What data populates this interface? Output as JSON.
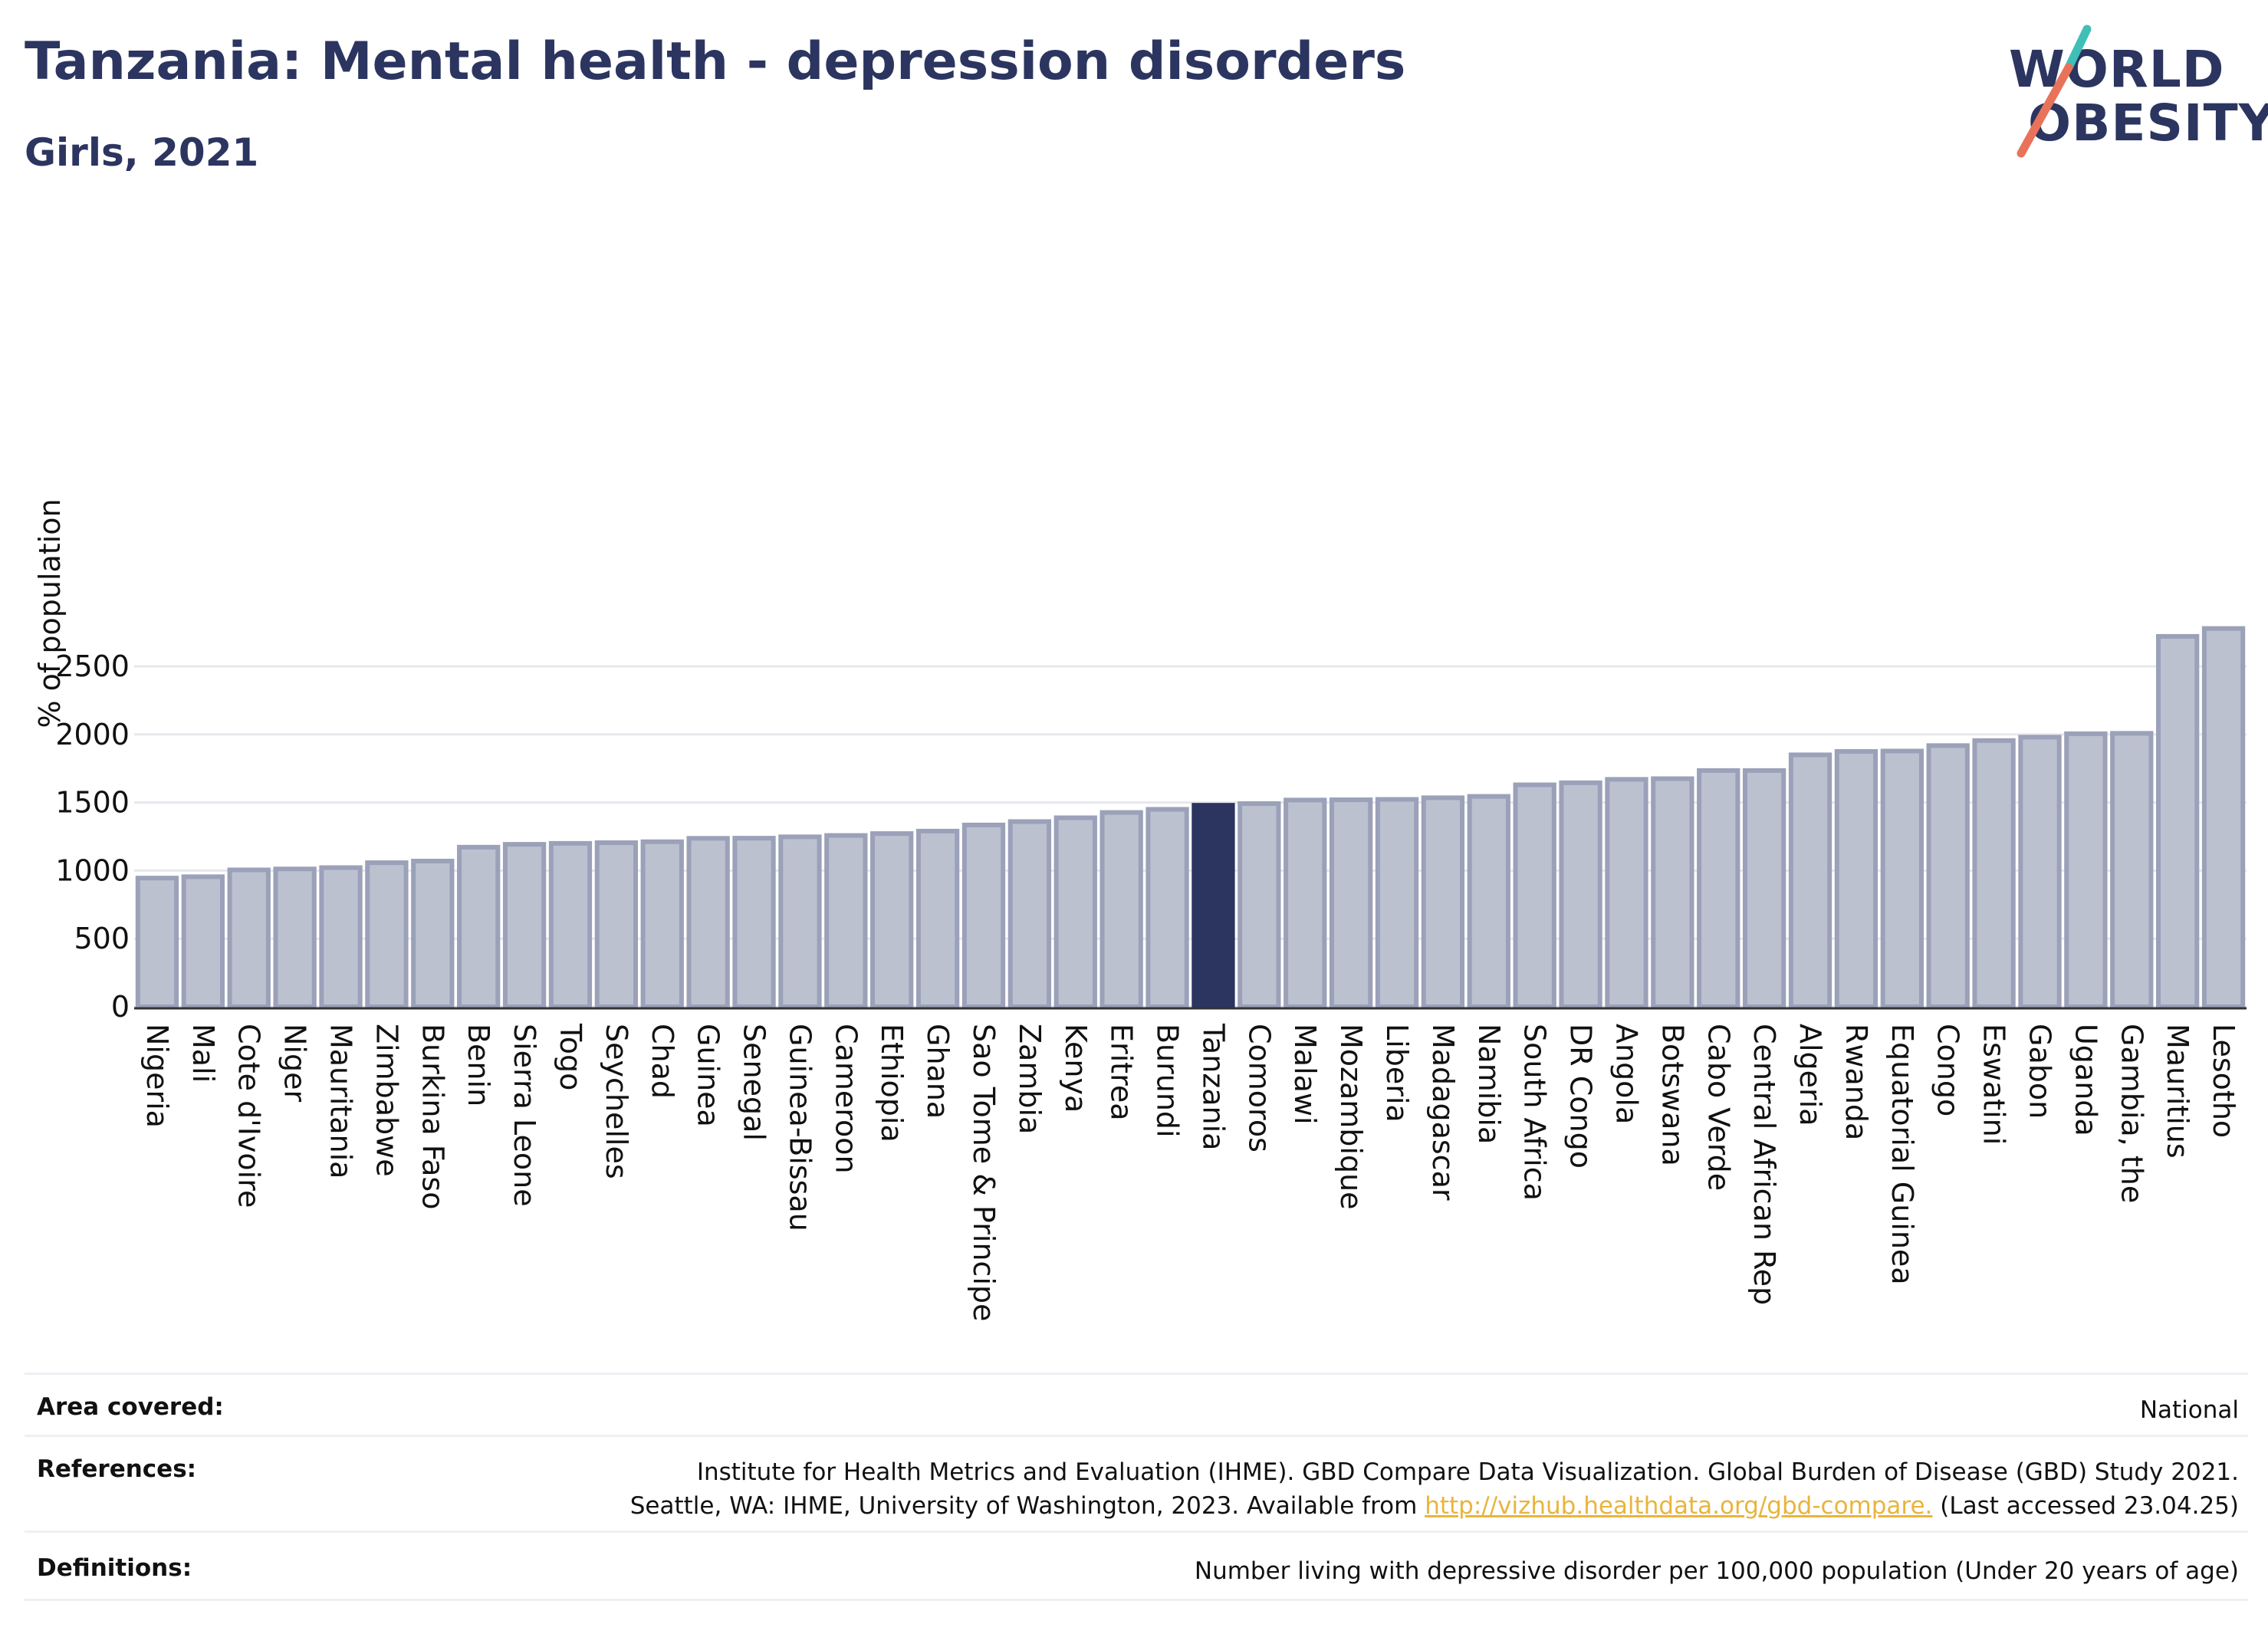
{
  "header": {
    "title": "Tanzania: Mental health - depression disorders",
    "subtitle": "Girls, 2021"
  },
  "logo": {
    "line1": "WORLD",
    "line2": "OBESITY"
  },
  "colors": {
    "bar": "#bcc1d0",
    "bar_border": "#9aa1b8",
    "highlight": "#2b3560",
    "grid": "#e6e8ee",
    "text_dark": "#2b3560",
    "logo_accent_teal": "#3fbfb7",
    "logo_accent_coral": "#e8735a",
    "link": "#e9b43d"
  },
  "chart_data": {
    "type": "bar",
    "ylabel": "% of population",
    "xlabel": "",
    "ylim": [
      0,
      2800
    ],
    "yticks": [
      0,
      500,
      1000,
      1500,
      2000,
      2500
    ],
    "grid": true,
    "highlight": "Tanzania",
    "categories": [
      "Nigeria",
      "Mali",
      "Cote d'Ivoire",
      "Niger",
      "Mauritania",
      "Zimbabwe",
      "Burkina Faso",
      "Benin",
      "Sierra Leone",
      "Togo",
      "Seychelles",
      "Chad",
      "Guinea",
      "Senegal",
      "Guinea-Bissau",
      "Cameroon",
      "Ethiopia",
      "Ghana",
      "Sao Tome & Principe",
      "Zambia",
      "Kenya",
      "Eritrea",
      "Burundi",
      "Tanzania",
      "Comoros",
      "Malawi",
      "Mozambique",
      "Liberia",
      "Madagascar",
      "Namibia",
      "South Africa",
      "DR Congo",
      "Angola",
      "Botswana",
      "Cabo Verde",
      "Central African Rep",
      "Algeria",
      "Rwanda",
      "Equatorial Guinea",
      "Congo",
      "Eswatini",
      "Gabon",
      "Uganda",
      "Gambia, the",
      "Mauritius",
      "Lesotho"
    ],
    "values": [
      945,
      955,
      1005,
      1012,
      1022,
      1058,
      1070,
      1172,
      1193,
      1200,
      1205,
      1212,
      1237,
      1238,
      1248,
      1258,
      1272,
      1290,
      1335,
      1360,
      1388,
      1427,
      1450,
      1480,
      1492,
      1518,
      1520,
      1523,
      1535,
      1545,
      1630,
      1645,
      1670,
      1675,
      1735,
      1735,
      1850,
      1875,
      1878,
      1918,
      1955,
      1980,
      2005,
      2008,
      2720,
      2778
    ]
  },
  "footer": {
    "area_label": "Area covered:",
    "area_value": "National",
    "references_label": "References:",
    "references_line1": "Institute for Health Metrics and Evaluation (IHME). GBD Compare Data Visualization. Global Burden of Disease (GBD) Study 2021.",
    "references_line2_pre": "Seattle, WA: IHME, University of Washington, 2023. Available from ",
    "references_link": "http://vizhub.healthdata.org/gbd-compare.",
    "references_line2_post": " (Last accessed 23.04.25)",
    "definitions_label": "Definitions:",
    "definitions_value": "Number living with depressive disorder per 100,000 population (Under 20 years of age)"
  }
}
